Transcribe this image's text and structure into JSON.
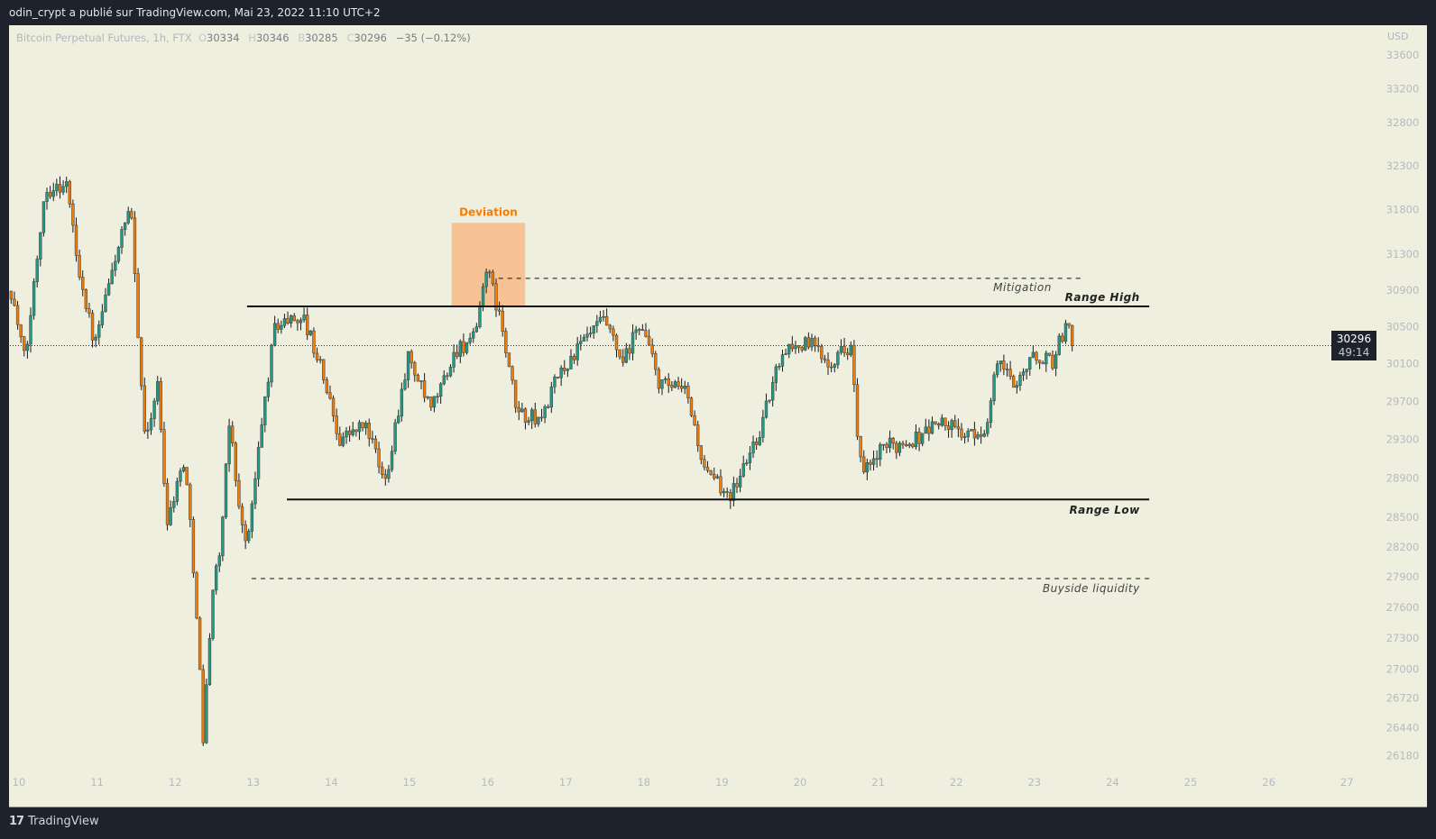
{
  "header": {
    "title": "odin_crypt a publié sur TradingView.com, Mai 23, 2022 11:10 UTC+2"
  },
  "legend": {
    "symbol": "Bitcoin Perpetual Futures, 1h, FTX",
    "open_key": "O",
    "open": "30334",
    "high_key": "H",
    "high": "30346",
    "low_key": "B",
    "low": "30285",
    "close_key": "C",
    "close": "30296",
    "change": "−35 (−0.12%)"
  },
  "currency": "USD",
  "last_price": {
    "price": "30296",
    "countdown": "49:14"
  },
  "footer": {
    "brand": "TradingView",
    "logo_text": "17"
  },
  "colors": {
    "up": "#1f9c85",
    "down": "#f57c00",
    "deviation_box": "#f7c394",
    "deviation_text": "#f57c00",
    "frame": "#1e222d",
    "background": "#efefdf"
  },
  "chart_data": {
    "type": "candlestick",
    "interval": "1h",
    "y_scale": "log",
    "grid": false,
    "y_ticks": [
      33600,
      33200,
      32800,
      32300,
      31800,
      31300,
      30900,
      30500,
      30100,
      29700,
      29300,
      28900,
      28500,
      28200,
      27900,
      27600,
      27300,
      27000,
      26720,
      26440,
      26180
    ],
    "x_ticks": [
      "10",
      "11",
      "12",
      "13",
      "14",
      "15",
      "16",
      "17",
      "18",
      "19",
      "20",
      "21",
      "22",
      "23",
      "24",
      "25",
      "26",
      "27"
    ],
    "approx_close_path": [
      [
        9.9,
        30890
      ],
      [
        10.08,
        30100
      ],
      [
        10.33,
        32030
      ],
      [
        10.62,
        32080
      ],
      [
        10.74,
        31260
      ],
      [
        10.97,
        30280
      ],
      [
        11.26,
        31360
      ],
      [
        11.43,
        31790
      ],
      [
        11.61,
        29290
      ],
      [
        11.78,
        29880
      ],
      [
        11.89,
        28460
      ],
      [
        12.12,
        29110
      ],
      [
        12.27,
        27650
      ],
      [
        12.36,
        26300
      ],
      [
        12.47,
        27730
      ],
      [
        12.59,
        28240
      ],
      [
        12.7,
        29560
      ],
      [
        12.82,
        28540
      ],
      [
        12.93,
        28240
      ],
      [
        13.11,
        29470
      ],
      [
        13.28,
        30520
      ],
      [
        13.63,
        30620
      ],
      [
        13.86,
        30080
      ],
      [
        14.1,
        29310
      ],
      [
        14.45,
        29450
      ],
      [
        14.68,
        28830
      ],
      [
        14.98,
        30180
      ],
      [
        15.27,
        29590
      ],
      [
        15.61,
        30270
      ],
      [
        15.85,
        30370
      ],
      [
        15.97,
        31180
      ],
      [
        16.14,
        30670
      ],
      [
        16.37,
        29590
      ],
      [
        16.67,
        29490
      ],
      [
        16.91,
        29980
      ],
      [
        17.26,
        30370
      ],
      [
        17.49,
        30570
      ],
      [
        17.73,
        30080
      ],
      [
        17.96,
        30570
      ],
      [
        18.2,
        29880
      ],
      [
        18.55,
        29790
      ],
      [
        18.79,
        28920
      ],
      [
        19.13,
        28740
      ],
      [
        19.49,
        29400
      ],
      [
        19.78,
        30270
      ],
      [
        20.13,
        30320
      ],
      [
        20.37,
        30130
      ],
      [
        20.66,
        30320
      ],
      [
        20.72,
        29400
      ],
      [
        20.8,
        28920
      ],
      [
        21.07,
        29210
      ],
      [
        21.48,
        29310
      ],
      [
        21.77,
        29490
      ],
      [
        22.24,
        29310
      ],
      [
        22.41,
        29490
      ],
      [
        22.53,
        30180
      ],
      [
        22.71,
        29880
      ],
      [
        23.0,
        30180
      ],
      [
        23.23,
        30130
      ],
      [
        23.41,
        30530
      ],
      [
        23.5,
        30296
      ]
    ],
    "annotations": {
      "deviation": {
        "label": "Deviation",
        "from_day": 15.54,
        "to_day": 16.48,
        "price_low": 30722,
        "price_high": 31650
      },
      "mitigation": {
        "label": "Mitigation",
        "price": 31030,
        "from_day": 16.14,
        "to_day": 23.59,
        "style": "dashed"
      },
      "range_high": {
        "label": "Range High",
        "price": 30722,
        "from_day": 12.92,
        "to_day": 24.47,
        "style": "solid"
      },
      "range_low": {
        "label": "Range Low",
        "price": 28680,
        "from_day": 13.43,
        "to_day": 24.47,
        "style": "solid"
      },
      "buyside_liquidity": {
        "label": "Buyside liquidity",
        "price": 27883,
        "from_day": 12.98,
        "to_day": 24.47,
        "style": "dashed"
      }
    }
  }
}
